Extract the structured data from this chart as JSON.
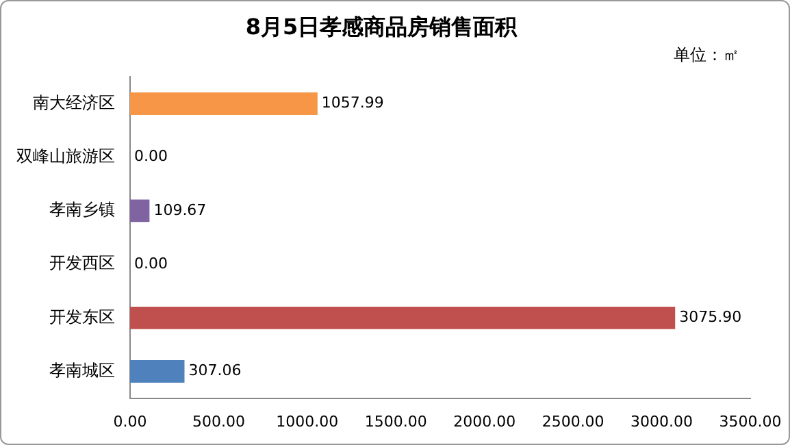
{
  "chart_data": {
    "type": "bar",
    "orientation": "horizontal",
    "title": "8月5日孝感商品房销售面积",
    "annotations": [
      "单位：㎡"
    ],
    "categories": [
      "南大经济区",
      "双峰山旅游区",
      "孝南乡镇",
      "开发西区",
      "开发东区",
      "孝南城区"
    ],
    "values": [
      1057.99,
      0,
      109.67,
      0,
      3075.9,
      307.06
    ],
    "colors": [
      "#f79646",
      "#4f81bd",
      "#8064a2",
      "#9bbb59",
      "#c0504d",
      "#4f81bd"
    ],
    "value_labels": [
      "1057.99",
      "0.00",
      "109.67",
      "0.00",
      "3075.90",
      "307.06"
    ],
    "xlim": [
      0,
      3500
    ],
    "xticks": [
      {
        "value": 0,
        "label": "0.00"
      },
      {
        "value": 500,
        "label": "500.00"
      },
      {
        "value": 1000,
        "label": "1000.00"
      },
      {
        "value": 1500,
        "label": "1500.00"
      },
      {
        "value": 2000,
        "label": "2000.00"
      },
      {
        "value": 2500,
        "label": "2500.00"
      },
      {
        "value": 3000,
        "label": "3000.00"
      },
      {
        "value": 3500,
        "label": "3500.00"
      }
    ],
    "grid": false,
    "legend": false
  }
}
